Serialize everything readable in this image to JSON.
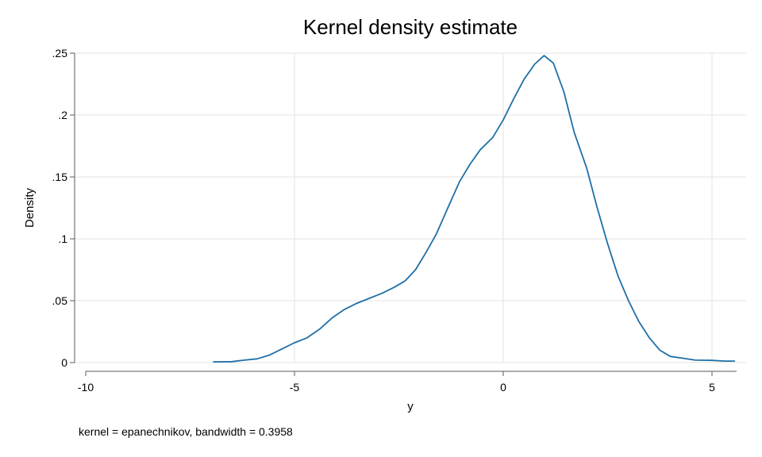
{
  "chart_data": {
    "type": "line",
    "title": "Kernel density estimate",
    "xlabel": "y",
    "ylabel": "Density",
    "note": "kernel = epanechnikov, bandwidth = 0.3958",
    "xlim": [
      -10,
      5.6
    ],
    "ylim": [
      0,
      0.25
    ],
    "x_ticks": [
      -10,
      -5,
      0,
      5
    ],
    "x_tick_labels": [
      "-10",
      "-5",
      "0",
      "5"
    ],
    "y_ticks": [
      0,
      0.05,
      0.1,
      0.15,
      0.2,
      0.25
    ],
    "y_tick_labels": [
      "0",
      ".05",
      ".1",
      ".15",
      ".2",
      ".25"
    ],
    "grid": true,
    "line_color": "#1f6fa8",
    "series": [
      {
        "x": [
          -6.95,
          -6.5,
          -6.2,
          -5.9,
          -5.6,
          -5.3,
          -5.0,
          -4.7,
          -4.4,
          -4.1,
          -3.8,
          -3.5,
          -3.2,
          -2.9,
          -2.6,
          -2.35,
          -2.1,
          -1.85,
          -1.6,
          -1.3,
          -1.05,
          -0.8,
          -0.55,
          -0.25,
          0.0,
          0.25,
          0.5,
          0.75,
          0.98,
          1.2,
          1.45,
          1.7,
          2.0,
          2.25,
          2.5,
          2.75,
          3.0,
          3.25,
          3.5,
          3.75,
          4.0,
          4.3,
          4.6,
          5.0,
          5.3,
          5.55
        ],
        "y": [
          0.0006,
          0.0008,
          0.002,
          0.003,
          0.006,
          0.011,
          0.016,
          0.02,
          0.027,
          0.036,
          0.043,
          0.048,
          0.052,
          0.056,
          0.061,
          0.066,
          0.075,
          0.089,
          0.104,
          0.127,
          0.146,
          0.16,
          0.172,
          0.182,
          0.196,
          0.213,
          0.229,
          0.241,
          0.248,
          0.242,
          0.219,
          0.186,
          0.157,
          0.125,
          0.096,
          0.07,
          0.05,
          0.033,
          0.02,
          0.01,
          0.005,
          0.0035,
          0.002,
          0.0018,
          0.0012,
          0.0012
        ]
      }
    ]
  }
}
